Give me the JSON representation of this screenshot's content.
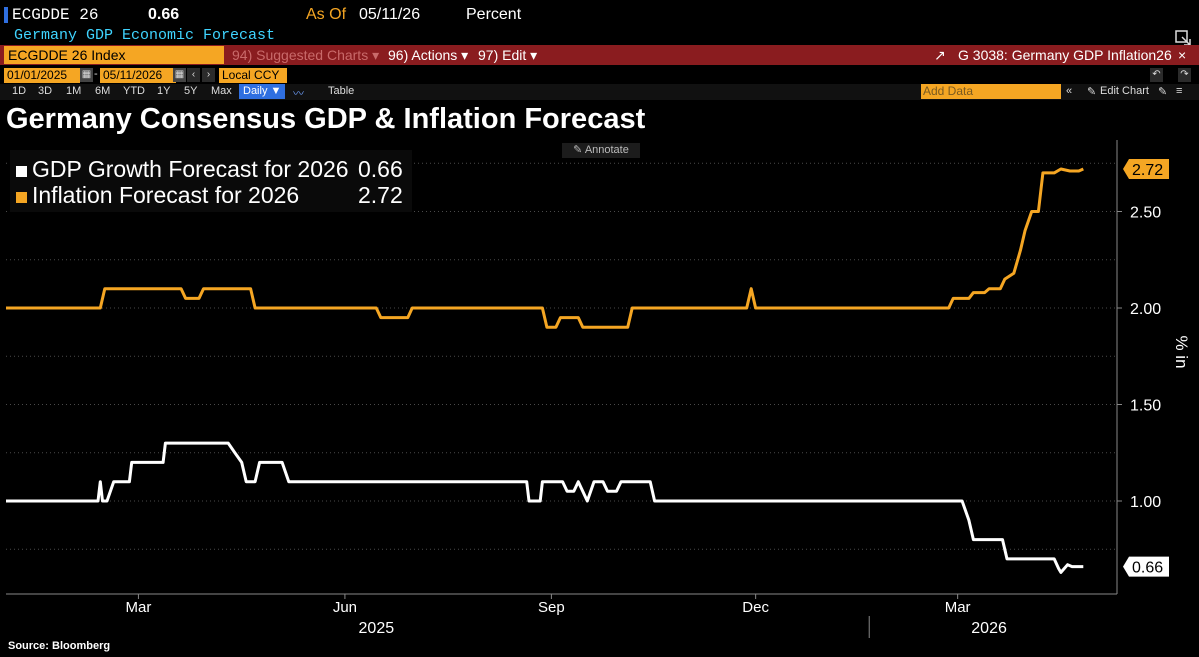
{
  "header": {
    "ticker": "ECGDDE 26",
    "value": "0.66",
    "as_of_label": "As Of",
    "as_of_date": "05/11/26",
    "unit": "Percent",
    "subtitle": "Germany GDP Economic Forecast"
  },
  "toolbar": {
    "security": "ECGDDE 26 Index",
    "suggested": "94) Suggested Charts ▾",
    "actions": "96) Actions ▾",
    "edit": "97) Edit ▾",
    "chart_ref": "G 3038: Germany GDP Inflation26"
  },
  "range": {
    "start": "01/01/2025",
    "end": "05/11/2026",
    "currency": "Local CCY"
  },
  "periods": [
    "1D",
    "3D",
    "1M",
    "6M",
    "YTD",
    "1Y",
    "5Y",
    "Max"
  ],
  "frequency": "Daily ▼",
  "table_label": "Table",
  "add_data_placeholder": "Add Data",
  "edit_chart": "Edit Chart",
  "annotate": "Annotate",
  "source": "Source: Bloomberg",
  "colors": {
    "gdp": "#ffffff",
    "inflation": "#f5a623",
    "accent": "#8a1c1f"
  },
  "chart_data": {
    "type": "line",
    "title": "Germany Consensus GDP & Inflation Forecast",
    "ylabel": "%",
    "ylim": [
      0.55,
      2.8
    ],
    "yticks": [
      1.0,
      1.5,
      2.0,
      2.5
    ],
    "ytick_labels": [
      "1.00",
      "1.50",
      "2.00",
      "2.50"
    ],
    "x_month_ticks": [
      {
        "date": "2025-03-01",
        "label": "Mar"
      },
      {
        "date": "2025-06-01",
        "label": "Jun"
      },
      {
        "date": "2025-09-01",
        "label": "Sep"
      },
      {
        "date": "2025-12-01",
        "label": "Dec"
      },
      {
        "date": "2026-03-01",
        "label": "Mar"
      }
    ],
    "x_year_labels": [
      {
        "date": "2025-06-15",
        "label": "2025"
      },
      {
        "date": "2026-03-15",
        "label": "2026"
      }
    ],
    "xlim": [
      "2025-01-01",
      "2026-05-11"
    ],
    "series": [
      {
        "name": "GDP Growth Forecast for 2026",
        "last": "0.66",
        "color": "#ffffff",
        "x": [
          "2025-01-01",
          "2025-02-11",
          "2025-02-12",
          "2025-02-13",
          "2025-02-15",
          "2025-02-18",
          "2025-02-19",
          "2025-02-25",
          "2025-02-26",
          "2025-03-12",
          "2025-03-13",
          "2025-04-10",
          "2025-04-13",
          "2025-04-16",
          "2025-04-18",
          "2025-04-22",
          "2025-04-24",
          "2025-05-04",
          "2025-05-07",
          "2025-08-21",
          "2025-08-22",
          "2025-08-27",
          "2025-08-28",
          "2025-09-06",
          "2025-09-08",
          "2025-09-11",
          "2025-09-13",
          "2025-09-17",
          "2025-09-20",
          "2025-09-24",
          "2025-09-26",
          "2025-09-30",
          "2025-10-02",
          "2025-10-15",
          "2025-10-17",
          "2026-03-03",
          "2026-03-06",
          "2026-03-08",
          "2026-03-21",
          "2026-03-23",
          "2026-04-13",
          "2026-04-15",
          "2026-04-16",
          "2026-04-19",
          "2026-04-21",
          "2026-04-26"
        ],
        "y": [
          1.0,
          1.0,
          1.1,
          1.0,
          1.0,
          1.1,
          1.1,
          1.1,
          1.2,
          1.2,
          1.3,
          1.3,
          1.25,
          1.2,
          1.1,
          1.1,
          1.2,
          1.2,
          1.1,
          1.1,
          1.0,
          1.0,
          1.1,
          1.1,
          1.05,
          1.05,
          1.1,
          1.0,
          1.1,
          1.1,
          1.05,
          1.05,
          1.1,
          1.1,
          1.0,
          1.0,
          0.9,
          0.8,
          0.8,
          0.7,
          0.7,
          0.65,
          0.63,
          0.67,
          0.66,
          0.66
        ]
      },
      {
        "name": "Inflation Forecast for 2026",
        "last": "2.72",
        "color": "#f5a623",
        "x": [
          "2025-01-01",
          "2025-02-12",
          "2025-02-14",
          "2025-03-20",
          "2025-03-22",
          "2025-03-28",
          "2025-03-30",
          "2025-04-20",
          "2025-04-22",
          "2025-06-15",
          "2025-06-17",
          "2025-06-29",
          "2025-07-01",
          "2025-08-28",
          "2025-08-30",
          "2025-09-03",
          "2025-09-05",
          "2025-09-13",
          "2025-09-15",
          "2025-10-05",
          "2025-10-07",
          "2025-11-27",
          "2025-11-29",
          "2025-12-01",
          "2026-02-25",
          "2026-02-27",
          "2026-03-06",
          "2026-03-08",
          "2026-03-13",
          "2026-03-15",
          "2026-03-20",
          "2026-03-22",
          "2026-03-26",
          "2026-03-29",
          "2026-03-31",
          "2026-04-03",
          "2026-04-06",
          "2026-04-08",
          "2026-04-13",
          "2026-04-16",
          "2026-04-20",
          "2026-04-24",
          "2026-04-26"
        ],
        "y": [
          2.0,
          2.0,
          2.1,
          2.1,
          2.05,
          2.05,
          2.1,
          2.1,
          2.0,
          2.0,
          1.95,
          1.95,
          2.0,
          2.0,
          1.9,
          1.9,
          1.95,
          1.95,
          1.9,
          1.9,
          2.0,
          2.0,
          2.1,
          2.0,
          2.0,
          2.05,
          2.05,
          2.08,
          2.08,
          2.1,
          2.1,
          2.15,
          2.18,
          2.3,
          2.4,
          2.5,
          2.5,
          2.7,
          2.7,
          2.72,
          2.71,
          2.71,
          2.72
        ]
      }
    ]
  }
}
